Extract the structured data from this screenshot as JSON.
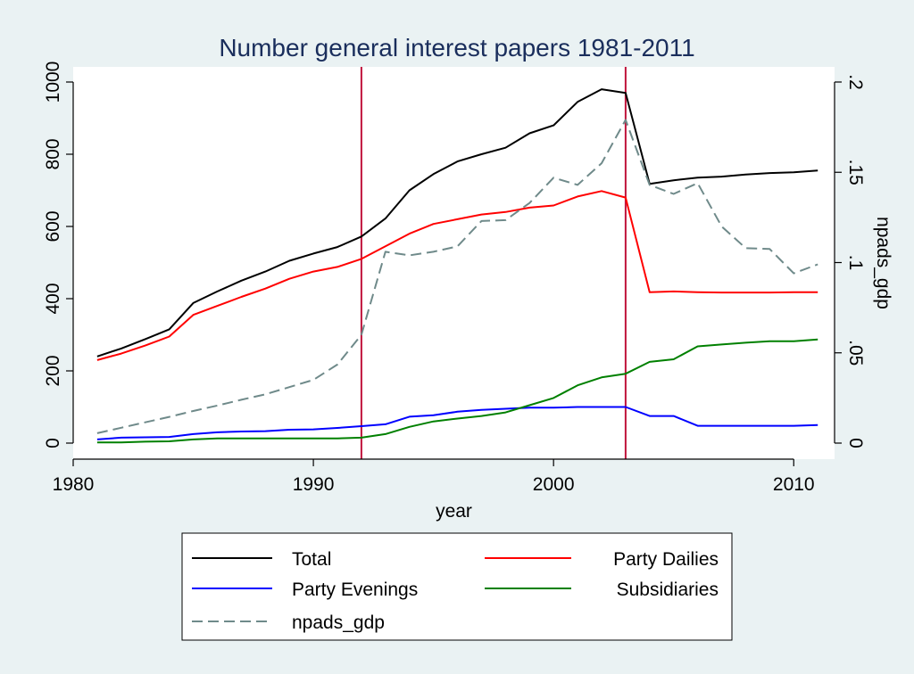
{
  "chart_data": {
    "type": "line",
    "title": "Number general interest papers 1981-2011",
    "xlabel": "year",
    "ylabel_left": "",
    "ylabel_right": "npads_gdp",
    "xlim": [
      1980,
      2011.7
    ],
    "ylim_left": [
      0,
      1000
    ],
    "ylim_right": [
      0,
      0.2
    ],
    "x_ticks": [
      1980,
      1990,
      2000,
      2010
    ],
    "x_tick_labels": [
      "1980",
      "1990",
      "2000",
      "2010"
    ],
    "y_left_ticks": [
      0,
      200,
      400,
      600,
      800,
      1000
    ],
    "y_left_tick_labels": [
      "0",
      "200",
      "400",
      "600",
      "800",
      "1000"
    ],
    "y_right_ticks": [
      0,
      0.05,
      0.1,
      0.15,
      0.2
    ],
    "y_right_tick_labels": [
      "0",
      ".05",
      ".1",
      ".15",
      ".2"
    ],
    "vertical_lines": [
      1992,
      2003
    ],
    "vertical_line_color": "#c0143c",
    "x": [
      1981,
      1982,
      1983,
      1984,
      1985,
      1986,
      1987,
      1988,
      1989,
      1990,
      1991,
      1992,
      1993,
      1994,
      1995,
      1996,
      1997,
      1998,
      1999,
      2000,
      2001,
      2002,
      2003,
      2004,
      2005,
      2006,
      2007,
      2008,
      2009,
      2010,
      2011
    ],
    "series": [
      {
        "name": "Total",
        "axis": "left",
        "color": "#000000",
        "dash": "solid",
        "values": [
          240,
          262,
          288,
          315,
          388,
          420,
          450,
          475,
          505,
          525,
          543,
          572,
          622,
          700,
          745,
          780,
          800,
          818,
          858,
          880,
          945,
          980,
          970,
          718,
          728,
          735,
          738,
          744,
          748,
          750,
          755
        ]
      },
      {
        "name": "Party Dailies",
        "axis": "left",
        "color": "#ff0000",
        "dash": "solid",
        "values": [
          230,
          248,
          270,
          295,
          355,
          380,
          405,
          428,
          455,
          475,
          488,
          510,
          545,
          580,
          607,
          620,
          633,
          640,
          652,
          658,
          683,
          698,
          680,
          418,
          420,
          418,
          417,
          417,
          417,
          418,
          418
        ]
      },
      {
        "name": "Party Evenings",
        "axis": "left",
        "color": "#0000ff",
        "dash": "solid",
        "values": [
          10,
          15,
          16,
          17,
          25,
          30,
          32,
          33,
          37,
          38,
          42,
          47,
          52,
          73,
          77,
          87,
          92,
          95,
          98,
          98,
          100,
          100,
          100,
          75,
          75,
          48,
          48,
          48,
          48,
          48,
          50
        ]
      },
      {
        "name": "Subsidiaries",
        "axis": "left",
        "color": "#008000",
        "dash": "solid",
        "values": [
          2,
          2,
          4,
          5,
          10,
          13,
          13,
          13,
          13,
          13,
          13,
          15,
          25,
          45,
          60,
          68,
          75,
          85,
          105,
          125,
          160,
          182,
          192,
          225,
          232,
          268,
          273,
          278,
          282,
          282,
          287
        ]
      },
      {
        "name": "npads_gdp",
        "axis": "right",
        "color": "#6f8a8a",
        "dash": "dashed",
        "values": [
          0.0055,
          0.0085,
          0.0115,
          0.0145,
          0.0178,
          0.0208,
          0.024,
          0.027,
          0.031,
          0.035,
          0.0435,
          0.06,
          0.106,
          0.104,
          0.106,
          0.109,
          0.123,
          0.1235,
          0.133,
          0.147,
          0.143,
          0.155,
          0.179,
          0.143,
          0.138,
          0.144,
          0.12,
          0.108,
          0.1075,
          0.094,
          0.099
        ]
      }
    ],
    "legend": {
      "position": "bottom",
      "columns": 2,
      "entries": [
        "Total",
        "Party Dailies",
        "Party Evenings",
        "Subsidiaries",
        "npads_gdp"
      ]
    },
    "colors": {
      "background": "#eaf2f3",
      "plot_background": "#ffffff",
      "title": "#1a2e5c"
    }
  }
}
